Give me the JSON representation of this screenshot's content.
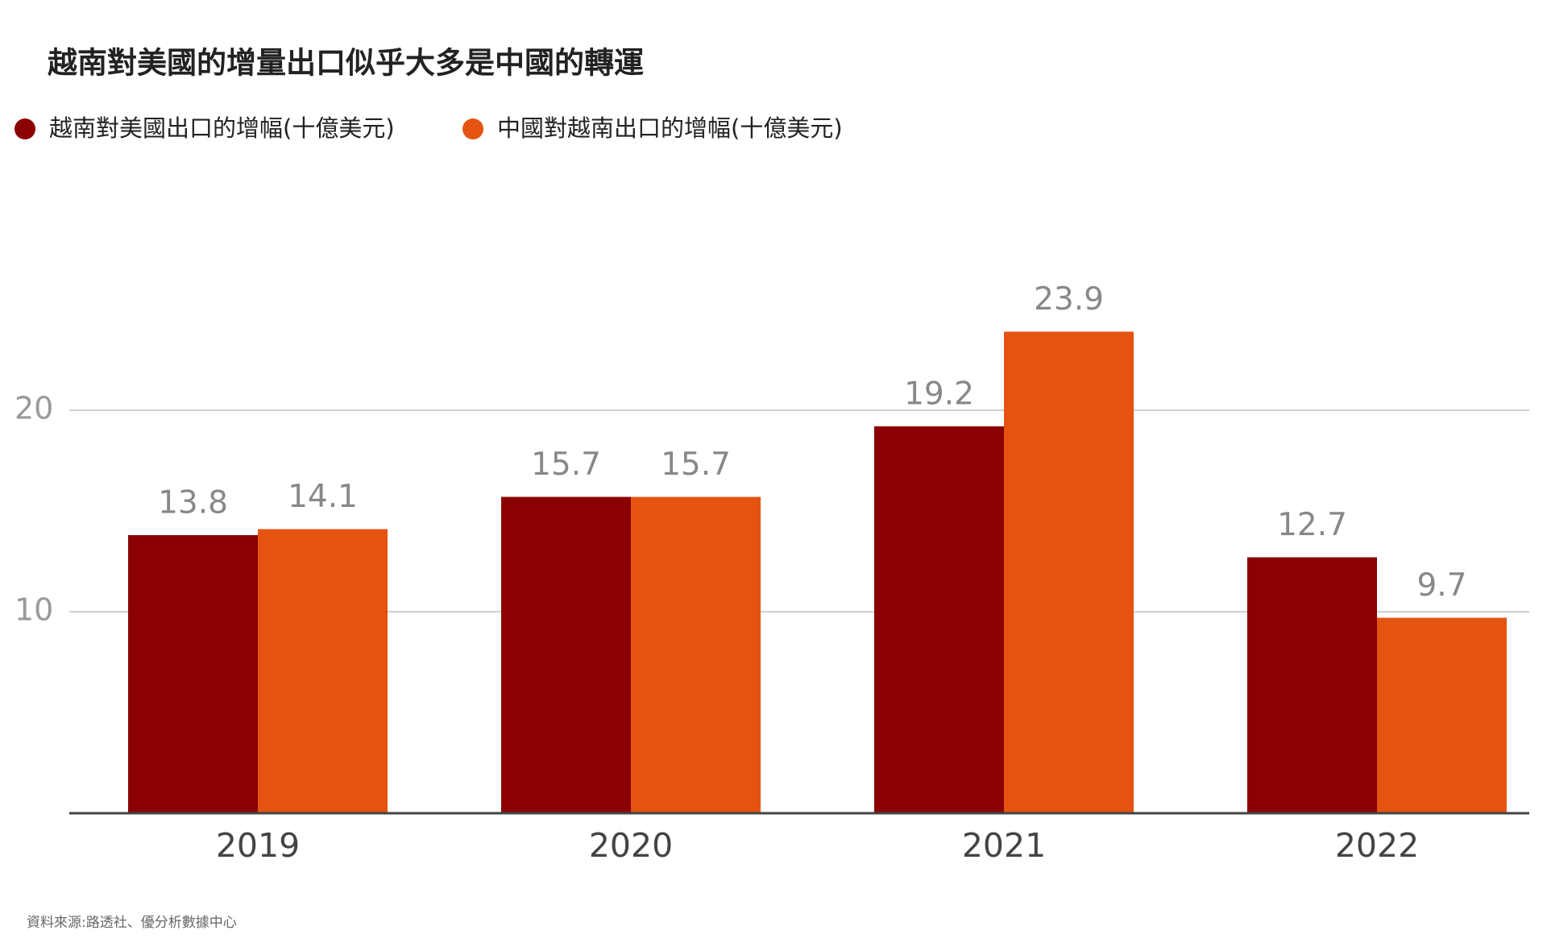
{
  "chart_data": {
    "type": "bar",
    "title": "越南對美國的增量出口似乎大多是中國的轉運",
    "categories": [
      "2019",
      "2020",
      "2021",
      "2022"
    ],
    "series": [
      {
        "name": "越南對美國出口的增幅(十億美元)",
        "color": "#8b0000",
        "values": [
          13.8,
          15.7,
          19.2,
          12.7
        ]
      },
      {
        "name": "中國對越南出口的增幅(十億美元)",
        "color": "#e55310",
        "values": [
          14.1,
          15.7,
          23.9,
          9.7
        ]
      }
    ],
    "ylim": [
      0,
      25
    ],
    "yticks": [
      10,
      20
    ],
    "grid": true,
    "source": "資料來源:路透社、優分析數據中心"
  }
}
